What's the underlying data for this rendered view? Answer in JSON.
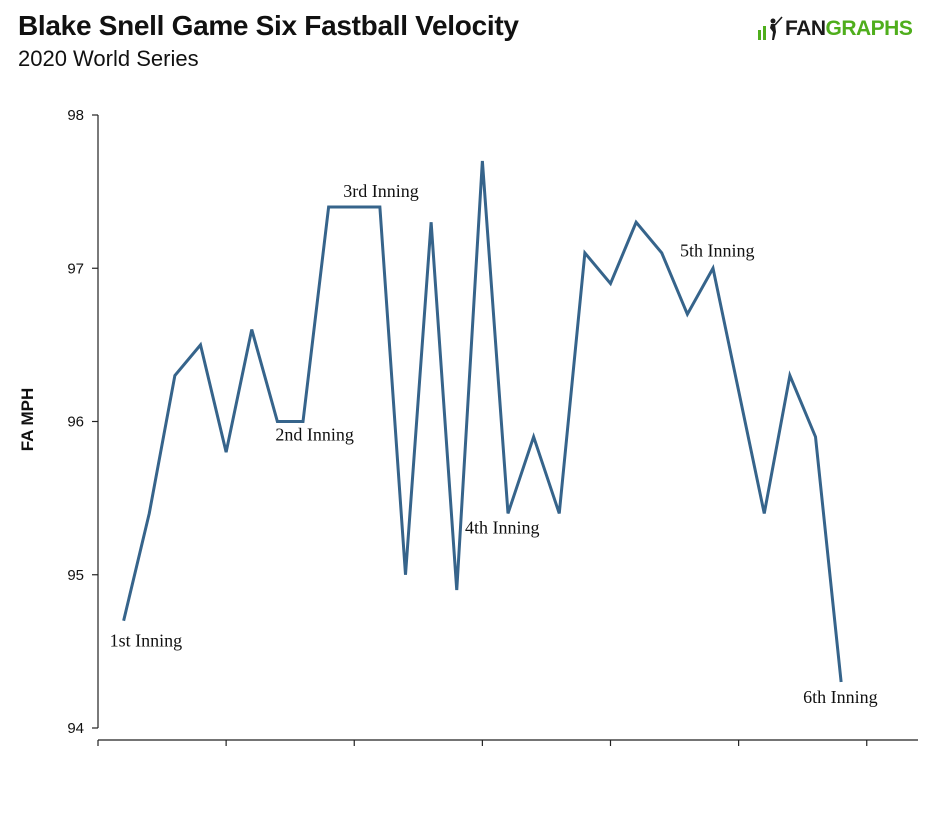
{
  "header": {
    "title": "Blake Snell Game Six Fastball Velocity",
    "subtitle": "2020 World Series"
  },
  "logo": {
    "part1": "FAN",
    "part2": "GRAPHS",
    "accent": "#4fae1c"
  },
  "chart_data": {
    "type": "line",
    "title": "Blake Snell Game Six Fastball Velocity",
    "subtitle": "2020 World Series",
    "xlabel": "",
    "ylabel": "FA MPH",
    "ylim": [
      94,
      98
    ],
    "yticks": [
      94,
      95,
      96,
      97,
      98
    ],
    "xlim": [
      0,
      32
    ],
    "xticks": [
      0,
      5,
      10,
      15,
      20,
      25,
      30
    ],
    "grid": false,
    "line_color": "#36648b",
    "series": [
      {
        "x": [
          1,
          2,
          3,
          4,
          5,
          6,
          7,
          8,
          9,
          10,
          11,
          12,
          13,
          14,
          15,
          16,
          17,
          18,
          19,
          20,
          21,
          22,
          23,
          24,
          25,
          26,
          27,
          28,
          29
        ],
        "values": [
          94.7,
          95.4,
          96.3,
          96.5,
          95.8,
          96.6,
          96.0,
          96.0,
          97.4,
          97.4,
          97.4,
          95.0,
          97.3,
          94.9,
          97.7,
          95.4,
          95.9,
          95.4,
          97.1,
          96.9,
          97.3,
          97.1,
          96.7,
          97.0,
          96.2,
          95.4,
          96.3,
          95.9,
          94.3
        ]
      }
    ],
    "annotations": [
      {
        "text": "1st Inning",
        "x": 1,
        "y": 94.7
      },
      {
        "text": "2nd Inning",
        "x": 7,
        "y": 96.0
      },
      {
        "text": "3rd Inning",
        "x": 10,
        "y": 97.4
      },
      {
        "text": "4th Inning",
        "x": 16,
        "y": 95.4
      },
      {
        "text": "5th Inning",
        "x": 24,
        "y": 97.0
      },
      {
        "text": "6th Inning",
        "x": 29,
        "y": 94.3
      }
    ]
  }
}
